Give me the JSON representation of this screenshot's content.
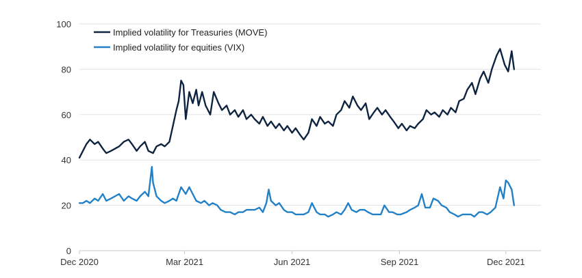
{
  "chart_data": {
    "type": "line",
    "title": "",
    "xlabel": "",
    "ylabel": "",
    "ylim": [
      0,
      100
    ],
    "xlim": [
      "2020-12-01",
      "2021-12-31"
    ],
    "yticks": [
      0,
      20,
      40,
      60,
      80,
      100
    ],
    "xticks": [
      {
        "label": "Dec 2020",
        "date": "2020-12-01"
      },
      {
        "label": "Mar 2021",
        "date": "2021-03-01"
      },
      {
        "label": "Jun 2021",
        "date": "2021-06-01"
      },
      {
        "label": "Sep 2021",
        "date": "2021-09-01"
      },
      {
        "label": "Dec 2021",
        "date": "2021-12-01"
      }
    ],
    "grid": "horizontal",
    "legend": "top-left",
    "series": [
      {
        "name": "Implied volatility for Treasuries (MOVE)",
        "color": "#0e2340",
        "points": [
          [
            "2020-12-01",
            41
          ],
          [
            "2020-12-04",
            44
          ],
          [
            "2020-12-07",
            47
          ],
          [
            "2020-12-10",
            49
          ],
          [
            "2020-12-14",
            47
          ],
          [
            "2020-12-17",
            48
          ],
          [
            "2020-12-21",
            45
          ],
          [
            "2020-12-24",
            43
          ],
          [
            "2020-12-28",
            44
          ],
          [
            "2021-01-04",
            46
          ],
          [
            "2021-01-08",
            48
          ],
          [
            "2021-01-12",
            49
          ],
          [
            "2021-01-15",
            47
          ],
          [
            "2021-01-19",
            44
          ],
          [
            "2021-01-22",
            46
          ],
          [
            "2021-01-26",
            48
          ],
          [
            "2021-01-29",
            44
          ],
          [
            "2021-02-02",
            43
          ],
          [
            "2021-02-05",
            46
          ],
          [
            "2021-02-09",
            47
          ],
          [
            "2021-02-12",
            46
          ],
          [
            "2021-02-16",
            48
          ],
          [
            "2021-02-19",
            55
          ],
          [
            "2021-02-22",
            62
          ],
          [
            "2021-02-24",
            66
          ],
          [
            "2021-02-26",
            75
          ],
          [
            "2021-02-28",
            73
          ],
          [
            "2021-03-02",
            58
          ],
          [
            "2021-03-05",
            70
          ],
          [
            "2021-03-08",
            65
          ],
          [
            "2021-03-11",
            71
          ],
          [
            "2021-03-13",
            64
          ],
          [
            "2021-03-16",
            70
          ],
          [
            "2021-03-19",
            64
          ],
          [
            "2021-03-23",
            60
          ],
          [
            "2021-03-26",
            70
          ],
          [
            "2021-03-30",
            65
          ],
          [
            "2021-04-02",
            62
          ],
          [
            "2021-04-06",
            64
          ],
          [
            "2021-04-09",
            60
          ],
          [
            "2021-04-13",
            62
          ],
          [
            "2021-04-16",
            59
          ],
          [
            "2021-04-20",
            62
          ],
          [
            "2021-04-23",
            58
          ],
          [
            "2021-04-27",
            60
          ],
          [
            "2021-04-30",
            58
          ],
          [
            "2021-05-04",
            56
          ],
          [
            "2021-05-07",
            59
          ],
          [
            "2021-05-11",
            55
          ],
          [
            "2021-05-14",
            57
          ],
          [
            "2021-05-18",
            54
          ],
          [
            "2021-05-21",
            56
          ],
          [
            "2021-05-25",
            53
          ],
          [
            "2021-05-28",
            55
          ],
          [
            "2021-06-01",
            52
          ],
          [
            "2021-06-04",
            54
          ],
          [
            "2021-06-08",
            51
          ],
          [
            "2021-06-11",
            49
          ],
          [
            "2021-06-15",
            52
          ],
          [
            "2021-06-18",
            58
          ],
          [
            "2021-06-22",
            55
          ],
          [
            "2021-06-25",
            59
          ],
          [
            "2021-06-29",
            56
          ],
          [
            "2021-07-02",
            57
          ],
          [
            "2021-07-06",
            55
          ],
          [
            "2021-07-09",
            60
          ],
          [
            "2021-07-13",
            62
          ],
          [
            "2021-07-16",
            66
          ],
          [
            "2021-07-20",
            63
          ],
          [
            "2021-07-23",
            68
          ],
          [
            "2021-07-27",
            64
          ],
          [
            "2021-07-30",
            62
          ],
          [
            "2021-08-03",
            65
          ],
          [
            "2021-08-06",
            58
          ],
          [
            "2021-08-10",
            61
          ],
          [
            "2021-08-13",
            63
          ],
          [
            "2021-08-17",
            60
          ],
          [
            "2021-08-20",
            62
          ],
          [
            "2021-08-24",
            59
          ],
          [
            "2021-08-27",
            57
          ],
          [
            "2021-08-31",
            54
          ],
          [
            "2021-09-03",
            56
          ],
          [
            "2021-09-07",
            53
          ],
          [
            "2021-09-10",
            55
          ],
          [
            "2021-09-14",
            54
          ],
          [
            "2021-09-17",
            56
          ],
          [
            "2021-09-21",
            58
          ],
          [
            "2021-09-24",
            62
          ],
          [
            "2021-09-28",
            60
          ],
          [
            "2021-10-01",
            61
          ],
          [
            "2021-10-05",
            59
          ],
          [
            "2021-10-08",
            62
          ],
          [
            "2021-10-12",
            60
          ],
          [
            "2021-10-15",
            63
          ],
          [
            "2021-10-19",
            61
          ],
          [
            "2021-10-22",
            66
          ],
          [
            "2021-10-26",
            67
          ],
          [
            "2021-10-29",
            71
          ],
          [
            "2021-11-02",
            74
          ],
          [
            "2021-11-05",
            69
          ],
          [
            "2021-11-09",
            76
          ],
          [
            "2021-11-12",
            79
          ],
          [
            "2021-11-16",
            74
          ],
          [
            "2021-11-19",
            80
          ],
          [
            "2021-11-23",
            86
          ],
          [
            "2021-11-26",
            89
          ],
          [
            "2021-11-30",
            82
          ],
          [
            "2021-12-03",
            79
          ],
          [
            "2021-12-06",
            88
          ],
          [
            "2021-12-08",
            80
          ]
        ]
      },
      {
        "name": "Implied volatility for equities (VIX)",
        "color": "#2180c6",
        "points": [
          [
            "2020-12-01",
            21
          ],
          [
            "2020-12-04",
            21
          ],
          [
            "2020-12-07",
            22
          ],
          [
            "2020-12-10",
            21
          ],
          [
            "2020-12-14",
            23
          ],
          [
            "2020-12-17",
            22
          ],
          [
            "2020-12-21",
            25
          ],
          [
            "2020-12-24",
            22
          ],
          [
            "2020-12-28",
            23
          ],
          [
            "2021-01-04",
            25
          ],
          [
            "2021-01-08",
            22
          ],
          [
            "2021-01-12",
            24
          ],
          [
            "2021-01-15",
            23
          ],
          [
            "2021-01-19",
            22
          ],
          [
            "2021-01-22",
            24
          ],
          [
            "2021-01-26",
            26
          ],
          [
            "2021-01-29",
            24
          ],
          [
            "2021-02-01",
            37
          ],
          [
            "2021-02-02",
            30
          ],
          [
            "2021-02-05",
            24
          ],
          [
            "2021-02-09",
            22
          ],
          [
            "2021-02-12",
            21
          ],
          [
            "2021-02-16",
            22
          ],
          [
            "2021-02-19",
            23
          ],
          [
            "2021-02-22",
            22
          ],
          [
            "2021-02-26",
            28
          ],
          [
            "2021-03-02",
            25
          ],
          [
            "2021-03-05",
            28
          ],
          [
            "2021-03-08",
            25
          ],
          [
            "2021-03-11",
            22
          ],
          [
            "2021-03-15",
            21
          ],
          [
            "2021-03-18",
            22
          ],
          [
            "2021-03-22",
            20
          ],
          [
            "2021-03-25",
            21
          ],
          [
            "2021-03-29",
            20
          ],
          [
            "2021-04-01",
            18
          ],
          [
            "2021-04-05",
            17
          ],
          [
            "2021-04-09",
            17
          ],
          [
            "2021-04-13",
            16
          ],
          [
            "2021-04-16",
            17
          ],
          [
            "2021-04-20",
            17
          ],
          [
            "2021-04-23",
            18
          ],
          [
            "2021-04-27",
            18
          ],
          [
            "2021-04-30",
            18
          ],
          [
            "2021-05-04",
            19
          ],
          [
            "2021-05-07",
            17
          ],
          [
            "2021-05-10",
            21
          ],
          [
            "2021-05-12",
            27
          ],
          [
            "2021-05-14",
            22
          ],
          [
            "2021-05-18",
            20
          ],
          [
            "2021-05-21",
            21
          ],
          [
            "2021-05-25",
            18
          ],
          [
            "2021-05-28",
            17
          ],
          [
            "2021-06-01",
            17
          ],
          [
            "2021-06-04",
            16
          ],
          [
            "2021-06-08",
            16
          ],
          [
            "2021-06-11",
            16
          ],
          [
            "2021-06-15",
            17
          ],
          [
            "2021-06-18",
            21
          ],
          [
            "2021-06-22",
            17
          ],
          [
            "2021-06-25",
            16
          ],
          [
            "2021-06-29",
            16
          ],
          [
            "2021-07-02",
            15
          ],
          [
            "2021-07-06",
            16
          ],
          [
            "2021-07-09",
            17
          ],
          [
            "2021-07-13",
            16
          ],
          [
            "2021-07-16",
            18
          ],
          [
            "2021-07-19",
            21
          ],
          [
            "2021-07-22",
            18
          ],
          [
            "2021-07-26",
            17
          ],
          [
            "2021-07-29",
            18
          ],
          [
            "2021-08-02",
            18
          ],
          [
            "2021-08-05",
            17
          ],
          [
            "2021-08-09",
            16
          ],
          [
            "2021-08-12",
            16
          ],
          [
            "2021-08-16",
            16
          ],
          [
            "2021-08-19",
            20
          ],
          [
            "2021-08-23",
            17
          ],
          [
            "2021-08-26",
            17
          ],
          [
            "2021-08-30",
            16
          ],
          [
            "2021-09-02",
            16
          ],
          [
            "2021-09-07",
            17
          ],
          [
            "2021-09-10",
            18
          ],
          [
            "2021-09-14",
            19
          ],
          [
            "2021-09-17",
            20
          ],
          [
            "2021-09-20",
            25
          ],
          [
            "2021-09-23",
            19
          ],
          [
            "2021-09-27",
            19
          ],
          [
            "2021-09-30",
            23
          ],
          [
            "2021-10-04",
            22
          ],
          [
            "2021-10-07",
            20
          ],
          [
            "2021-10-11",
            19
          ],
          [
            "2021-10-14",
            17
          ],
          [
            "2021-10-18",
            16
          ],
          [
            "2021-10-21",
            15
          ],
          [
            "2021-10-25",
            16
          ],
          [
            "2021-10-28",
            16
          ],
          [
            "2021-11-01",
            16
          ],
          [
            "2021-11-04",
            15
          ],
          [
            "2021-11-08",
            17
          ],
          [
            "2021-11-11",
            17
          ],
          [
            "2021-11-15",
            16
          ],
          [
            "2021-11-18",
            17
          ],
          [
            "2021-11-22",
            19
          ],
          [
            "2021-11-26",
            28
          ],
          [
            "2021-11-29",
            23
          ],
          [
            "2021-12-01",
            31
          ],
          [
            "2021-12-03",
            30
          ],
          [
            "2021-12-06",
            27
          ],
          [
            "2021-12-08",
            20
          ]
        ]
      }
    ]
  }
}
